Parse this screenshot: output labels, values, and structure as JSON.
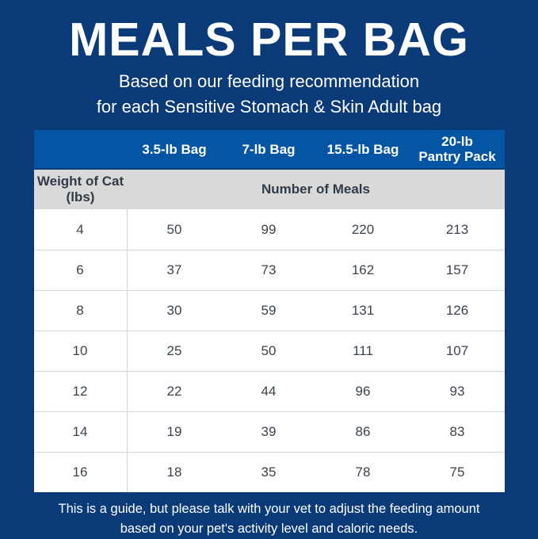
{
  "colors": {
    "navy": "#0a3a78",
    "header-blue": "#0456a5",
    "subhead-gray": "#d9d9d9",
    "dark-text": "#313b47",
    "number-text": "#3b434e"
  },
  "page": {
    "title": "MEALS PER BAG",
    "subtitle_line1": "Based on our feeding recommendation",
    "subtitle_line2": "for each Sensitive Stomach & Skin Adult bag",
    "footer": "This is a guide, but please talk with your vet to adjust the feeding amount\nbased on your pet's activity level and caloric needs."
  },
  "table": {
    "columns": [
      "3.5-lb Bag",
      "7-lb Bag",
      "15.5-lb Bag",
      "20-lb\nPantry Pack"
    ],
    "row_header_label": "Weight of Cat\n(lbs)",
    "meals_label": "Number of Meals"
  },
  "chart_data": {
    "type": "table",
    "title": "MEALS PER BAG",
    "subtitle": "Based on our feeding recommendation for each Sensitive Stomach & Skin Adult bag",
    "columns": [
      "Weight of Cat (lbs)",
      "3.5-lb Bag",
      "7-lb Bag",
      "15.5-lb Bag",
      "20-lb Pantry Pack"
    ],
    "value_unit": "Number of Meals",
    "rows": [
      [
        4,
        50,
        99,
        220,
        213
      ],
      [
        6,
        37,
        73,
        162,
        157
      ],
      [
        8,
        30,
        59,
        131,
        126
      ],
      [
        10,
        25,
        50,
        111,
        107
      ],
      [
        12,
        22,
        44,
        96,
        93
      ],
      [
        14,
        19,
        39,
        86,
        83
      ],
      [
        16,
        18,
        35,
        78,
        75
      ]
    ],
    "note": "This is a guide, but please talk with your vet to adjust the feeding amount based on your pet's activity level and caloric needs."
  }
}
